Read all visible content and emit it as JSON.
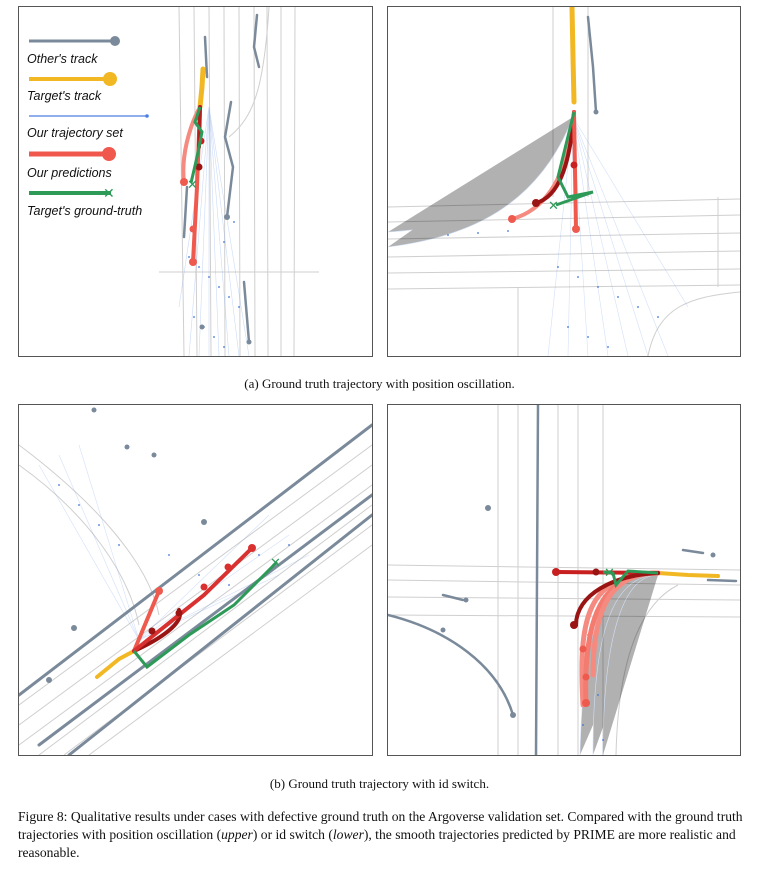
{
  "legend": {
    "others_track": "Other's track",
    "targets_track": "Target's track",
    "trajectory_set": "Our trajectory set",
    "predictions": "Our predictions",
    "ground_truth": "Target's ground-truth"
  },
  "captions": {
    "a": "(a) Ground truth trajectory with position oscillation.",
    "b": "(b) Ground truth trajectory with id switch."
  },
  "figure_caption": {
    "label": "Figure 8:",
    "part1": " Qualitative results under cases with defective ground truth on the Argoverse validation set. Compared with the ground truth trajectories with position oscillation (",
    "upper": "upper",
    "part2": ") or id switch (",
    "lower": "lower",
    "part3": "), the smooth trajectories predicted by PRIME are more realistic and reasonable."
  },
  "colors": {
    "others_track": "#7a8a9a",
    "targets_track": "#f2b824",
    "trajectory_set": "#4a7fe0",
    "predictions": "#f0584e",
    "ground_truth": "#2e9a58",
    "lane": "#c9c9c9"
  }
}
